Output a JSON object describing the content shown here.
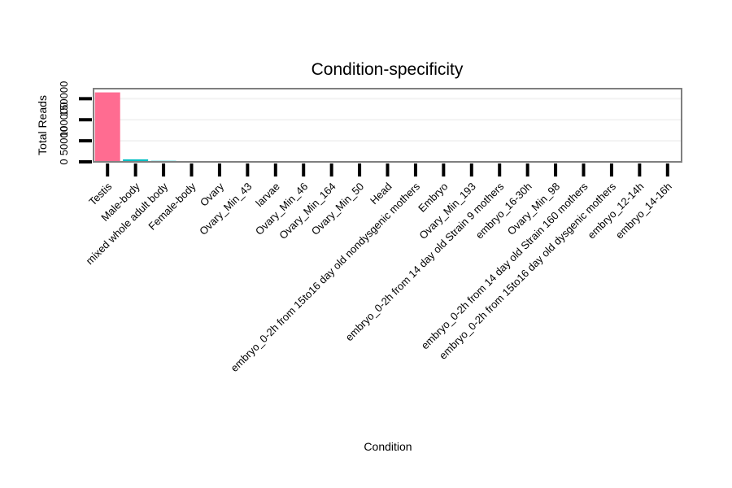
{
  "chart_data": {
    "type": "bar",
    "title": "Condition-specificity",
    "xlabel": "Condition",
    "ylabel": "Total Reads",
    "categories": [
      "Testis",
      "Male-body",
      "mixed whole adult body",
      "Female-body",
      "Ovary",
      "Ovary_Min_43",
      "larvae",
      "Ovary_Min_46",
      "Ovary_Min_164",
      "Ovary_Min_50",
      "Head",
      "embryo_0-2h from 15to16 day old nondysgenic mothers",
      "Embryo",
      "Ovary_Min_193",
      "embryo_0-2h from 14 day old Strain 9 mothers",
      "embryo_16-30h",
      "Ovary_Min_98",
      "embryo_0-2h from 14 day old Strain 160 mothers",
      "embryo_0-2h from 15to16 day old dysgenic mothers",
      "embryo_12-14h",
      "embryo_14-16h"
    ],
    "values": [
      165000,
      6000,
      2500,
      300,
      150,
      100,
      80,
      60,
      50,
      40,
      30,
      25,
      20,
      15,
      12,
      10,
      8,
      6,
      5,
      4,
      3
    ],
    "ylim": [
      0,
      170000
    ],
    "yticks": [
      0,
      50000,
      100000,
      150000
    ],
    "ytick_labels": [
      "0",
      "50000",
      "100000",
      "150000"
    ],
    "colors": {
      "bar_primary": "#FF6C91",
      "bar_secondary": "#00BFC4",
      "panel_border": "#7F7F7F",
      "grid": "#F2F2F2"
    },
    "grid": true,
    "legend": "none"
  }
}
